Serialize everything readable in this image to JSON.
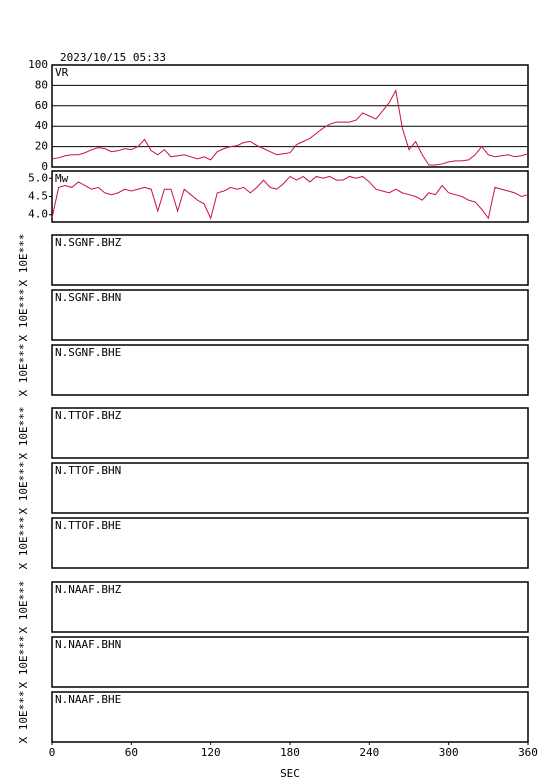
{
  "chart_data": [
    {
      "type": "line",
      "title": "2023/10/15 05:33",
      "label": "VR",
      "color": "#c8143c",
      "grid": true,
      "xlim": [
        0,
        360
      ],
      "ylim": [
        0,
        100
      ],
      "yticks": [
        0,
        20,
        40,
        60,
        80,
        100
      ],
      "x": [
        0,
        5,
        10,
        15,
        20,
        25,
        30,
        35,
        40,
        45,
        50,
        55,
        60,
        65,
        70,
        75,
        80,
        85,
        90,
        95,
        100,
        105,
        110,
        115,
        120,
        125,
        130,
        135,
        140,
        145,
        150,
        155,
        160,
        165,
        170,
        175,
        180,
        185,
        190,
        195,
        200,
        205,
        210,
        215,
        220,
        225,
        230,
        235,
        240,
        245,
        250,
        255,
        260,
        265,
        270,
        275,
        280,
        285,
        290,
        295,
        300,
        305,
        310,
        315,
        320,
        325,
        330,
        335,
        340,
        345,
        350,
        355,
        360
      ],
      "values": [
        8,
        9,
        11,
        12,
        12,
        14,
        17,
        19,
        18,
        15,
        16,
        18,
        17,
        20,
        27,
        16,
        12,
        17,
        10,
        11,
        12,
        10,
        8,
        10,
        7,
        15,
        18,
        20,
        21,
        24,
        25,
        21,
        18,
        15,
        12,
        13,
        14,
        22,
        25,
        28,
        33,
        38,
        42,
        44,
        44,
        44,
        46,
        53,
        50,
        47,
        55,
        63,
        75,
        38,
        17,
        25,
        12,
        2,
        2,
        3,
        5,
        6,
        6,
        7,
        12,
        20,
        12,
        10,
        11,
        12,
        10,
        11,
        13
      ]
    },
    {
      "type": "line",
      "label": "Mw",
      "color": "#c8143c",
      "grid": false,
      "xlim": [
        0,
        360
      ],
      "ylim": [
        3.8,
        5.2
      ],
      "yticks": [
        {
          "value": 4,
          "label": "4.0"
        },
        4.5,
        {
          "value": 5,
          "label": "5.0"
        }
      ],
      "x": [
        0,
        5,
        10,
        15,
        20,
        25,
        30,
        35,
        40,
        45,
        50,
        55,
        60,
        65,
        70,
        75,
        80,
        85,
        90,
        95,
        100,
        105,
        110,
        115,
        120,
        125,
        130,
        135,
        140,
        145,
        150,
        155,
        160,
        165,
        170,
        175,
        180,
        185,
        190,
        195,
        200,
        205,
        210,
        215,
        220,
        225,
        230,
        235,
        240,
        245,
        250,
        255,
        260,
        265,
        270,
        275,
        280,
        285,
        290,
        295,
        300,
        305,
        310,
        315,
        320,
        325,
        330,
        335,
        340,
        345,
        350,
        355,
        360
      ],
      "values": [
        3.9,
        4.75,
        4.8,
        4.75,
        4.9,
        4.8,
        4.7,
        4.75,
        4.6,
        4.55,
        4.6,
        4.7,
        4.65,
        4.7,
        4.75,
        4.7,
        4.1,
        4.7,
        4.7,
        4.1,
        4.7,
        4.55,
        4.4,
        4.3,
        3.9,
        4.6,
        4.65,
        4.75,
        4.7,
        4.75,
        4.6,
        4.75,
        4.95,
        4.75,
        4.7,
        4.85,
        5.05,
        4.95,
        5.05,
        4.9,
        5.05,
        5.0,
        5.05,
        4.95,
        4.95,
        5.05,
        5.0,
        5.05,
        4.9,
        4.7,
        4.65,
        4.6,
        4.7,
        4.6,
        4.55,
        4.5,
        4.4,
        4.6,
        4.55,
        4.8,
        4.6,
        4.55,
        4.5,
        4.4,
        4.35,
        4.15,
        3.9,
        4.75,
        4.7,
        4.65,
        4.6,
        4.5,
        4.55
      ]
    },
    {
      "type": "empty",
      "label": "N.SGNF.BHZ",
      "ylabel": "X 10E***"
    },
    {
      "type": "empty",
      "label": "N.SGNF.BHN",
      "ylabel": "X 10E***"
    },
    {
      "type": "empty",
      "label": "N.SGNF.BHE",
      "ylabel": "X 10E***"
    },
    {
      "type": "empty",
      "label": "N.TTOF.BHZ",
      "ylabel": "X 10E***"
    },
    {
      "type": "empty",
      "label": "N.TTOF.BHN",
      "ylabel": "X 10E***"
    },
    {
      "type": "empty",
      "label": "N.TTOF.BHE",
      "ylabel": "X 10E***"
    },
    {
      "type": "empty",
      "label": "N.NAAF.BHZ",
      "ylabel": "X 10E***"
    },
    {
      "type": "empty",
      "label": "N.NAAF.BHN",
      "ylabel": "X 10E***"
    },
    {
      "type": "empty",
      "label": "N.NAAF.BHE",
      "ylabel": "X 10E***",
      "xlim": [
        0,
        360
      ],
      "xticks": [
        0,
        60,
        120,
        180,
        240,
        300,
        360
      ],
      "xlabel": "SEC"
    }
  ]
}
